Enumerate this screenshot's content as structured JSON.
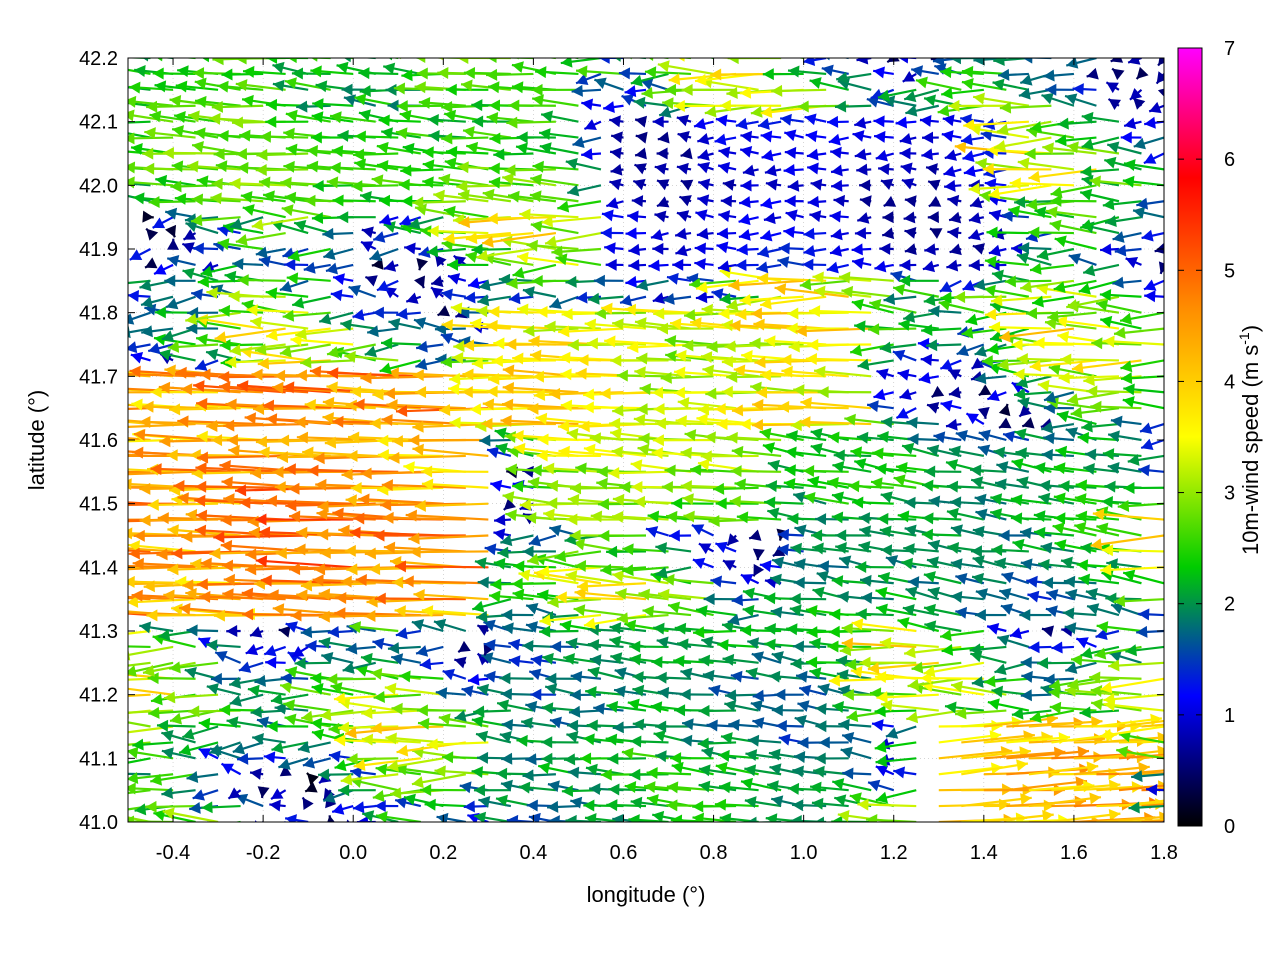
{
  "chart_data": {
    "type": "vector-field",
    "xlabel": "longitude (°)",
    "ylabel": "latitude (°)",
    "colorbar_label": "10m-wind speed (m s-1)",
    "colorbar_label_parts": [
      "10m-wind speed (m s",
      "-1",
      ")"
    ],
    "xlim": [
      -0.5,
      1.8
    ],
    "ylim": [
      41.0,
      42.2
    ],
    "xticks": [
      -0.4,
      -0.2,
      0.0,
      0.2,
      0.4,
      0.6,
      0.8,
      1.0,
      1.2,
      1.4,
      1.6,
      1.8
    ],
    "xtick_labels": [
      "-0.4",
      "-0.2",
      "0.0",
      "0.2",
      "0.4",
      "0.6",
      "0.8",
      "1.0",
      "1.2",
      "1.4",
      "1.6",
      "1.8"
    ],
    "yticks": [
      41.0,
      41.1,
      41.2,
      41.3,
      41.4,
      41.5,
      41.6,
      41.7,
      41.8,
      41.9,
      42.0,
      42.1,
      42.2
    ],
    "ytick_labels": [
      "41.0",
      "41.1",
      "41.2",
      "41.3",
      "41.4",
      "41.5",
      "41.6",
      "41.7",
      "41.8",
      "41.9",
      "42.0",
      "42.1",
      "42.2"
    ],
    "colorbar_range": [
      0,
      7
    ],
    "colorbar_ticks": [
      0,
      1,
      2,
      3,
      4,
      5,
      6,
      7
    ],
    "colorbar_tick_labels": [
      "0",
      "1",
      "2",
      "3",
      "4",
      "5",
      "6",
      "7"
    ],
    "colormap": [
      "#000000",
      "#0000ff",
      "#00cc00",
      "#ffff00",
      "#ff8c00",
      "#ff0000",
      "#ff00ff"
    ],
    "grid": true,
    "contour_color": "#333333",
    "wind_regions": [
      {
        "lon_range": [
          -0.5,
          0.3
        ],
        "lat_range": [
          41.3,
          41.7
        ],
        "u": -4.5,
        "v": 0.1,
        "speed": 5.0
      },
      {
        "lon_range": [
          0.3,
          1.2
        ],
        "lat_range": [
          41.6,
          41.8
        ],
        "u": -3.5,
        "v": 0.1,
        "speed": 3.8
      },
      {
        "lon_range": [
          0.4,
          1.0
        ],
        "lat_range": [
          41.45,
          41.6
        ],
        "u": -3.0,
        "v": 0.2,
        "speed": 3.5
      },
      {
        "lon_range": [
          1.3,
          1.8
        ],
        "lat_range": [
          41.0,
          41.15
        ],
        "u": 4.0,
        "v": 0.3,
        "speed": 4.5
      },
      {
        "lon_range": [
          -0.5,
          0.5
        ],
        "lat_range": [
          41.95,
          42.2
        ],
        "u": -2.5,
        "v": 0.2,
        "speed": 2.5
      },
      {
        "lon_range": [
          0.6,
          1.5
        ],
        "lat_range": [
          41.85,
          42.1
        ],
        "u": -1.0,
        "v": 0.0,
        "speed": 1.2
      },
      {
        "lon_range": [
          1.0,
          1.8
        ],
        "lat_range": [
          41.3,
          41.6
        ],
        "u": -2.0,
        "v": 0.3,
        "speed": 2.5
      },
      {
        "lon_range": [
          0.3,
          1.2
        ],
        "lat_range": [
          41.0,
          41.3
        ],
        "u": -2.0,
        "v": 0.2,
        "speed": 2.4
      }
    ]
  }
}
